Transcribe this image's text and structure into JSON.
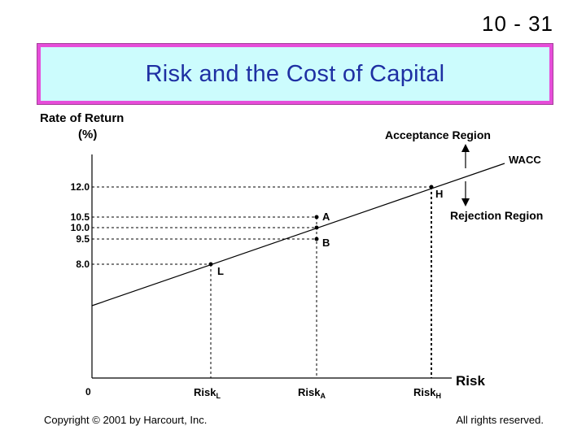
{
  "slide_number": "10 - 31",
  "title": "Risk and the Cost of Capital",
  "y_axis_label_line1": "Rate of Return",
  "y_axis_label_line2": "(%)",
  "x_axis_label": "Risk",
  "origin_label": "0",
  "y_ticks": [
    "12.0",
    "10.5",
    "10.0",
    "9.5",
    "8.0"
  ],
  "x_ticks": {
    "risk_l": {
      "base": "Risk",
      "sub": "L"
    },
    "risk_a": {
      "base": "Risk",
      "sub": "A"
    },
    "risk_h": {
      "base": "Risk",
      "sub": "H"
    }
  },
  "line_label": "WACC",
  "acceptance_label": "Acceptance Region",
  "rejection_label": "Rejection Region",
  "points": {
    "h": "H",
    "a": "A",
    "b": "B",
    "l": "L"
  },
  "footer": {
    "copyright": "Copyright © 2001 by Harcourt, Inc.",
    "rights": "All rights reserved."
  }
}
